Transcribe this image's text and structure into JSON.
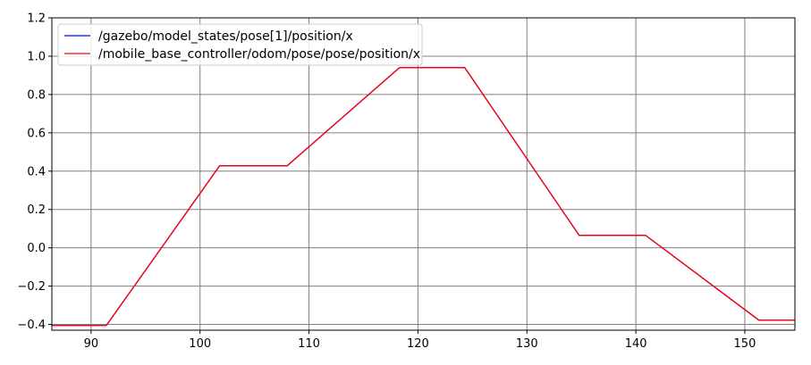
{
  "chart_data": {
    "type": "line",
    "title": "",
    "xlabel": "",
    "ylabel": "",
    "xlim": [
      86.4,
      154.6
    ],
    "ylim": [
      -0.43,
      1.2
    ],
    "xticks": [
      90,
      100,
      110,
      120,
      130,
      140,
      150
    ],
    "yticks": [
      -0.4,
      -0.2,
      0.0,
      0.2,
      0.4,
      0.6,
      0.8,
      1.0,
      1.2
    ],
    "xtick_labels": [
      "90",
      "100",
      "110",
      "120",
      "130",
      "140",
      "150"
    ],
    "ytick_labels": [
      "−0.4",
      "−0.2",
      "0.0",
      "0.2",
      "0.4",
      "0.6",
      "0.8",
      "1.0",
      "1.2"
    ],
    "grid": true,
    "legend_position": "top-left",
    "series": [
      {
        "name": "/gazebo/model_states/pose[1]/position/x",
        "color": "#0000ff",
        "x": [
          86.4,
          91.4,
          101.8,
          108.0,
          118.3,
          124.3,
          134.8,
          140.9,
          151.3,
          154.6
        ],
        "y": [
          -0.405,
          -0.405,
          0.428,
          0.428,
          0.94,
          0.94,
          0.065,
          0.065,
          -0.378,
          -0.378
        ]
      },
      {
        "name": "/mobile_base_controller/odom/pose/pose/position/x",
        "color": "#ff0000",
        "x": [
          86.4,
          91.4,
          101.8,
          108.0,
          118.3,
          124.3,
          134.8,
          140.9,
          151.3,
          154.6
        ],
        "y": [
          -0.405,
          -0.405,
          0.428,
          0.428,
          0.94,
          0.94,
          0.065,
          0.065,
          -0.378,
          -0.378
        ]
      }
    ]
  }
}
